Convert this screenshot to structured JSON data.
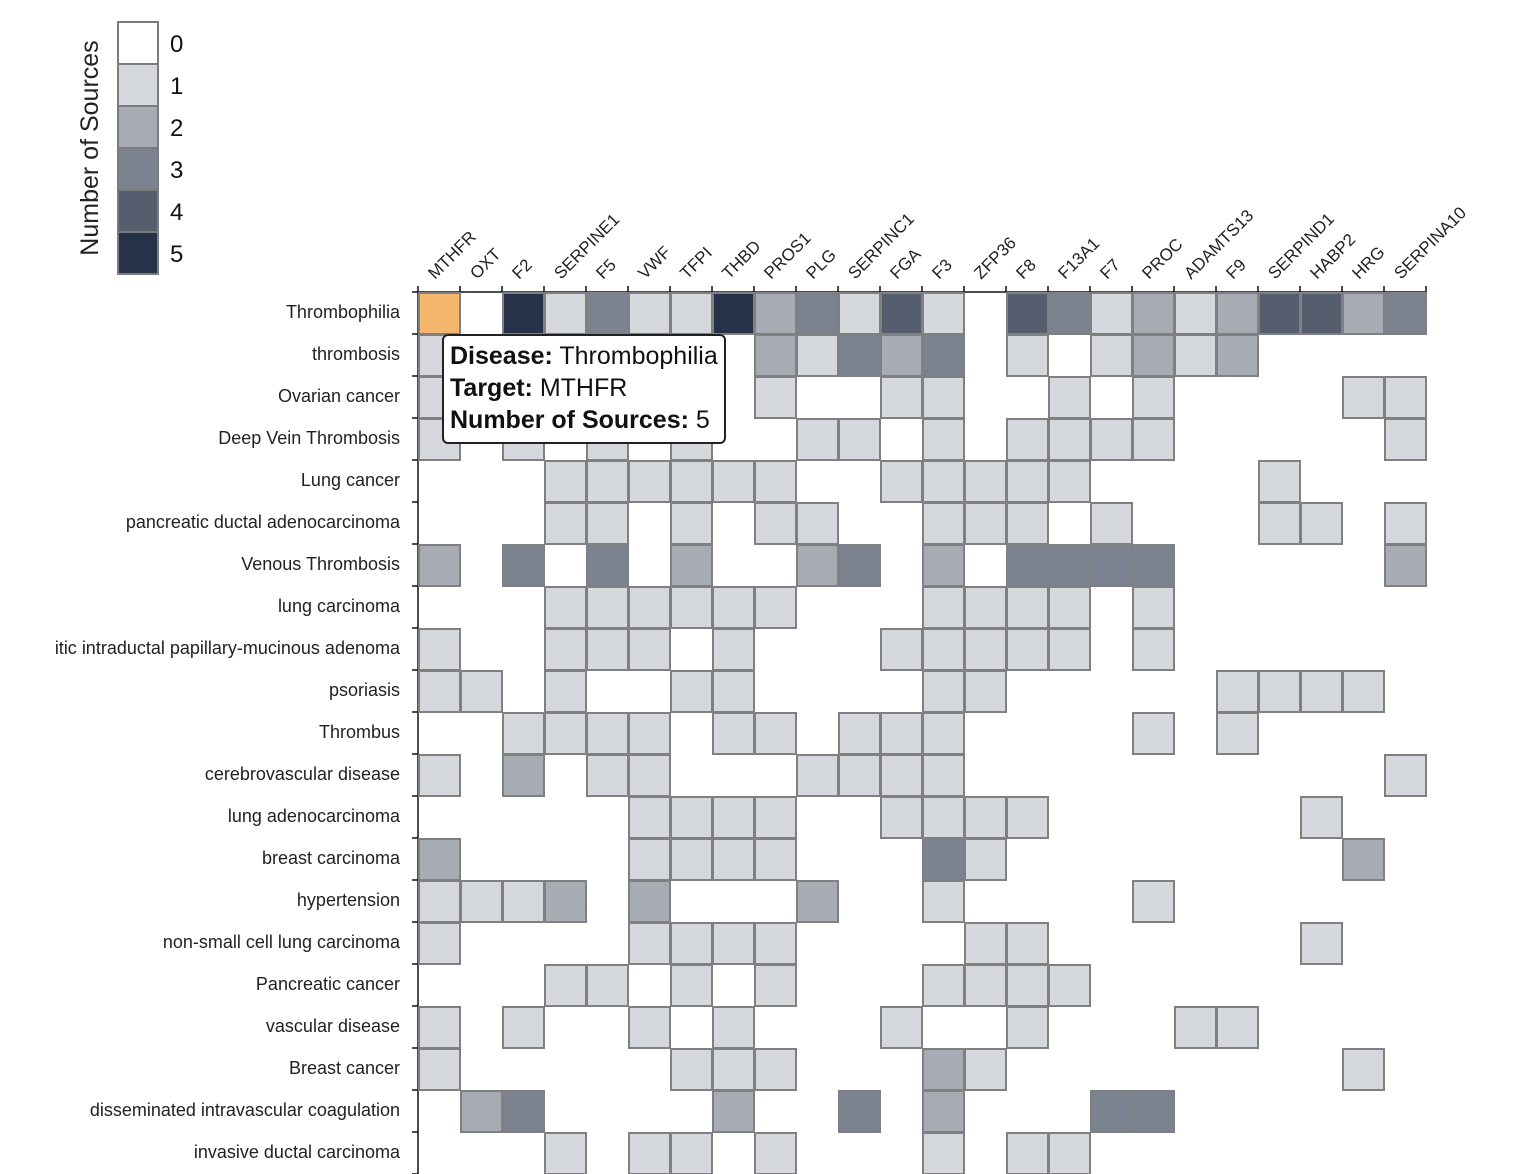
{
  "chart_data": {
    "type": "heatmap",
    "legend": {
      "title": "Number of Sources",
      "levels": [
        0,
        1,
        2,
        3,
        4,
        5
      ],
      "colors": [
        "#ffffff",
        "#d5d8dd",
        "#a6abb4",
        "#7b8390",
        "#555e6e",
        "#25324a"
      ]
    },
    "highlight_color": "#f5b66e",
    "columns": [
      "MTHFR",
      "OXT",
      "F2",
      "SERPINE1",
      "F5",
      "VWF",
      "TFPI",
      "THBD",
      "PROS1",
      "PLG",
      "SERPINC1",
      "FGA",
      "F3",
      "ZFP36",
      "F8",
      "F13A1",
      "F7",
      "PROC",
      "ADAMTS13",
      "F9",
      "SERPIND1",
      "HABP2",
      "HRG",
      "SERPINA10"
    ],
    "rows": [
      {
        "label": "Thrombophilia",
        "values": [
          5,
          0,
          5,
          1,
          3,
          1,
          1,
          5,
          2,
          3,
          1,
          4,
          1,
          0,
          4,
          3,
          1,
          2,
          1,
          2,
          4,
          4,
          2,
          3
        ]
      },
      {
        "label": "thrombosis",
        "values": [
          1,
          0,
          0,
          0,
          0,
          0,
          0,
          0,
          2,
          1,
          3,
          2,
          3,
          0,
          1,
          0,
          1,
          2,
          1,
          2,
          0,
          0,
          0,
          0
        ]
      },
      {
        "label": "Ovarian cancer",
        "values": [
          1,
          0,
          0,
          0,
          0,
          0,
          0,
          0,
          1,
          0,
          0,
          1,
          1,
          0,
          0,
          1,
          0,
          1,
          0,
          0,
          0,
          0,
          1,
          1
        ]
      },
      {
        "label": "Deep Vein Thrombosis",
        "values": [
          1,
          0,
          1,
          0,
          1,
          0,
          1,
          0,
          0,
          1,
          1,
          0,
          1,
          0,
          1,
          1,
          1,
          1,
          0,
          0,
          0,
          0,
          0,
          1
        ]
      },
      {
        "label": "Lung cancer",
        "values": [
          0,
          0,
          0,
          1,
          1,
          1,
          1,
          1,
          1,
          0,
          0,
          1,
          1,
          1,
          1,
          1,
          0,
          0,
          0,
          0,
          1,
          0,
          0,
          0
        ]
      },
      {
        "label": "pancreatic ductal adenocarcinoma",
        "values": [
          0,
          0,
          0,
          1,
          1,
          0,
          1,
          0,
          1,
          1,
          0,
          0,
          1,
          1,
          1,
          0,
          1,
          0,
          0,
          0,
          1,
          1,
          0,
          1
        ]
      },
      {
        "label": "Venous Thrombosis",
        "values": [
          2,
          0,
          3,
          0,
          3,
          0,
          2,
          0,
          0,
          2,
          3,
          0,
          2,
          0,
          3,
          3,
          3,
          3,
          0,
          0,
          0,
          0,
          0,
          2
        ]
      },
      {
        "label": "lung carcinoma",
        "values": [
          0,
          0,
          0,
          1,
          1,
          1,
          1,
          1,
          1,
          0,
          0,
          0,
          1,
          1,
          1,
          1,
          0,
          1,
          0,
          0,
          0,
          0,
          0,
          0
        ]
      },
      {
        "label": "itic intraductal papillary-mucinous adenoma",
        "values": [
          1,
          0,
          0,
          1,
          1,
          1,
          0,
          1,
          0,
          0,
          0,
          1,
          1,
          1,
          1,
          1,
          0,
          1,
          0,
          0,
          0,
          0,
          0,
          0
        ]
      },
      {
        "label": "psoriasis",
        "values": [
          1,
          1,
          0,
          1,
          0,
          0,
          1,
          1,
          0,
          0,
          0,
          0,
          1,
          1,
          0,
          0,
          0,
          0,
          0,
          1,
          1,
          1,
          1,
          0
        ]
      },
      {
        "label": "Thrombus",
        "values": [
          0,
          0,
          1,
          1,
          1,
          1,
          0,
          1,
          1,
          0,
          1,
          1,
          1,
          0,
          0,
          0,
          0,
          1,
          0,
          1,
          0,
          0,
          0,
          0
        ]
      },
      {
        "label": "cerebrovascular disease",
        "values": [
          1,
          0,
          2,
          0,
          1,
          1,
          0,
          0,
          0,
          1,
          1,
          1,
          1,
          0,
          0,
          0,
          0,
          0,
          0,
          0,
          0,
          0,
          0,
          1
        ]
      },
      {
        "label": "lung adenocarcinoma",
        "values": [
          0,
          0,
          0,
          0,
          0,
          1,
          1,
          1,
          1,
          0,
          0,
          1,
          1,
          1,
          1,
          0,
          0,
          0,
          0,
          0,
          0,
          1,
          0,
          0
        ]
      },
      {
        "label": "breast carcinoma",
        "values": [
          2,
          0,
          0,
          0,
          0,
          1,
          1,
          1,
          1,
          0,
          0,
          0,
          3,
          1,
          0,
          0,
          0,
          0,
          0,
          0,
          0,
          0,
          2,
          0
        ]
      },
      {
        "label": "hypertension",
        "values": [
          1,
          1,
          1,
          2,
          0,
          2,
          0,
          0,
          0,
          2,
          0,
          0,
          1,
          0,
          0,
          0,
          0,
          1,
          0,
          0,
          0,
          0,
          0,
          0
        ]
      },
      {
        "label": "non-small cell lung carcinoma",
        "values": [
          1,
          0,
          0,
          0,
          0,
          1,
          1,
          1,
          1,
          0,
          0,
          0,
          0,
          1,
          1,
          0,
          0,
          0,
          0,
          0,
          0,
          1,
          0,
          0
        ]
      },
      {
        "label": "Pancreatic cancer",
        "values": [
          0,
          0,
          0,
          1,
          1,
          0,
          1,
          0,
          1,
          0,
          0,
          0,
          1,
          1,
          1,
          1,
          0,
          0,
          0,
          0,
          0,
          0,
          0,
          0
        ]
      },
      {
        "label": "vascular disease",
        "values": [
          1,
          0,
          1,
          0,
          0,
          1,
          0,
          1,
          0,
          0,
          0,
          1,
          0,
          0,
          1,
          0,
          0,
          0,
          1,
          1,
          0,
          0,
          0,
          0
        ]
      },
      {
        "label": "Breast cancer",
        "values": [
          1,
          0,
          0,
          0,
          0,
          0,
          1,
          1,
          1,
          0,
          0,
          0,
          2,
          1,
          0,
          0,
          0,
          0,
          0,
          0,
          0,
          0,
          1,
          0
        ]
      },
      {
        "label": "disseminated intravascular coagulation",
        "values": [
          0,
          2,
          3,
          0,
          0,
          0,
          0,
          2,
          0,
          0,
          3,
          0,
          2,
          0,
          0,
          0,
          3,
          3,
          0,
          0,
          0,
          0,
          0,
          0
        ]
      },
      {
        "label": "invasive ductal carcinoma",
        "values": [
          0,
          0,
          0,
          1,
          0,
          1,
          1,
          0,
          1,
          0,
          0,
          0,
          1,
          0,
          1,
          1,
          0,
          0,
          0,
          0,
          0,
          0,
          0,
          0
        ]
      }
    ],
    "highlighted_cell": {
      "row": 0,
      "col": 0
    }
  },
  "tooltip": {
    "disease_key": "Disease:",
    "disease_value": "Thrombophilia",
    "target_key": "Target:",
    "target_value": "MTHFR",
    "sources_key": "Number of Sources:",
    "sources_value": "5"
  }
}
